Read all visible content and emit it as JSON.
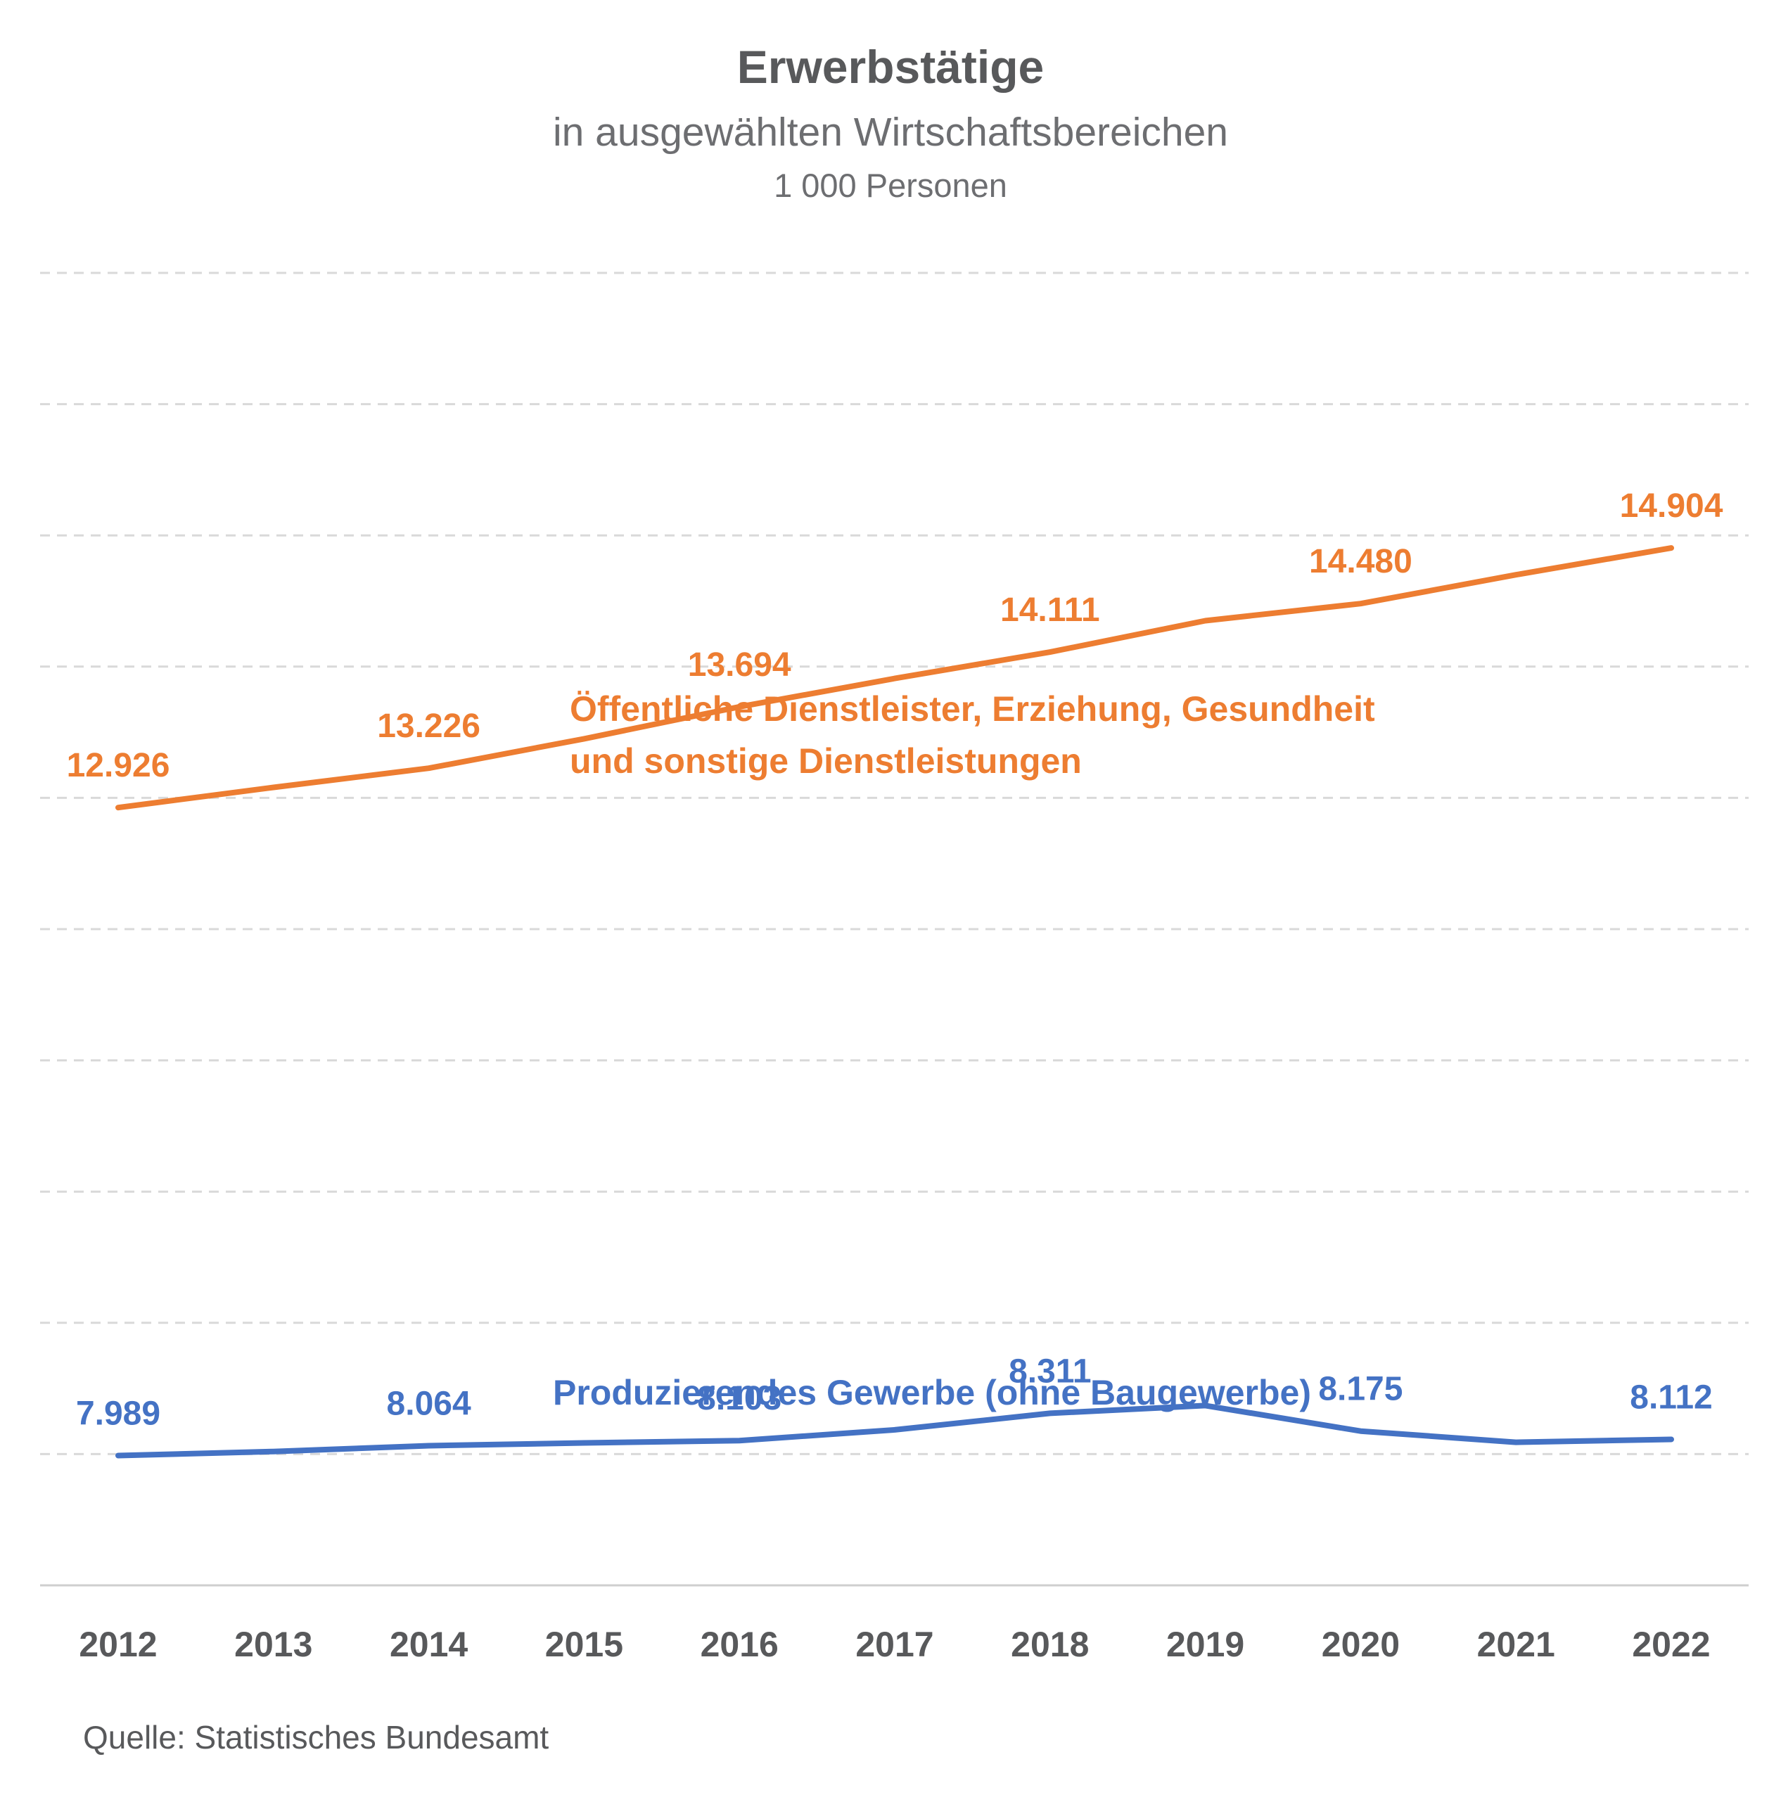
{
  "chart_data": {
    "type": "line",
    "title": "Erwerbstätige",
    "subtitle": "in ausgewählten Wirtschaftsbereichen",
    "unit": "1 000 Personen",
    "xlabel": "",
    "ylabel": "",
    "x": [
      "2012",
      "2013",
      "2014",
      "2015",
      "2016",
      "2017",
      "2018",
      "2019",
      "2020",
      "2021",
      "2022"
    ],
    "ylim": [
      7000,
      17000
    ],
    "grid": true,
    "series": [
      {
        "name": "Öffentliche Dienstleister, Erziehung, Gesundheit und sonstige Dienstleistungen",
        "name_lines": [
          "Öffentliche Dienstleister, Erziehung, Gesundheit",
          "und sonstige Dienstleistungen"
        ],
        "color": "#ed7d31",
        "values": [
          12926,
          13080,
          13226,
          13450,
          13694,
          13910,
          14111,
          14350,
          14480,
          14700,
          14904
        ],
        "labels": {
          "2012": "12.926",
          "2014": "13.226",
          "2016": "13.694",
          "2018": "14.111",
          "2020": "14.480",
          "2022": "14.904"
        }
      },
      {
        "name": "Produzierendes Gewerbe (ohne Baugewerbe)",
        "name_lines": [
          "Produzierendes Gewerbe (ohne Baugewerbe)"
        ],
        "color": "#4472c4",
        "values": [
          7989,
          8020,
          8064,
          8085,
          8103,
          8185,
          8311,
          8370,
          8175,
          8090,
          8112
        ],
        "labels": {
          "2012": "7.989",
          "2014": "8.064",
          "2016": "8.103",
          "2018": "8.311",
          "2020": "8.175",
          "2022": "8.112"
        }
      }
    ]
  },
  "source": "Quelle: Statistisches Bundesamt"
}
